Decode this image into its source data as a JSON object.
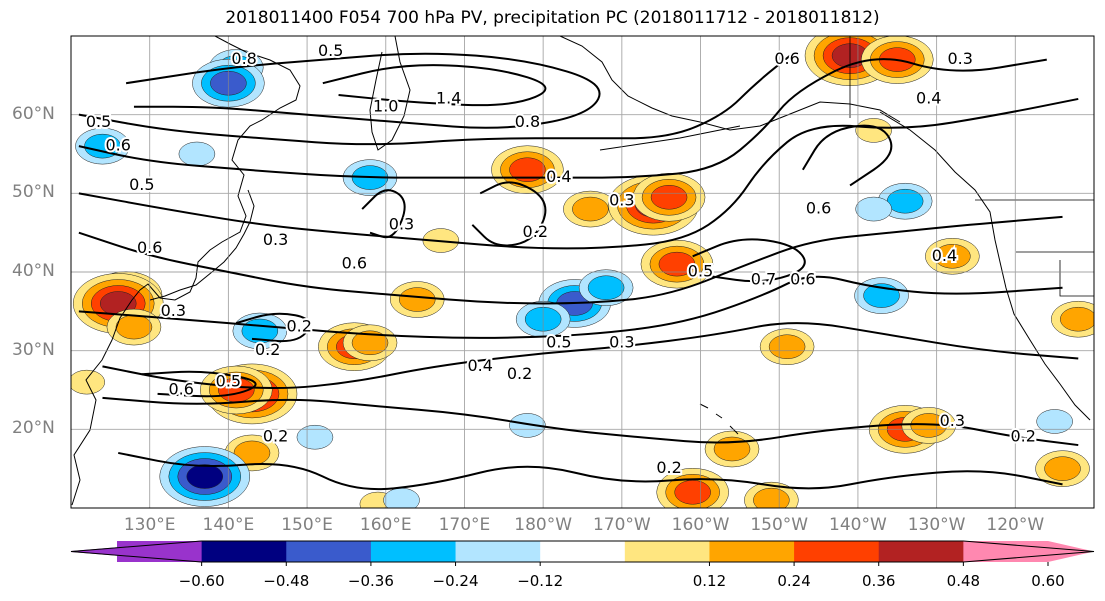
{
  "title": "2018011400 F054 700 hPa PV, precipitation PC (2018011712 - 2018011812)",
  "axes": {
    "lat_labels": [
      "60°N",
      "50°N",
      "40°N",
      "30°N",
      "20°N"
    ],
    "lon_labels": [
      "130°E",
      "140°E",
      "150°E",
      "160°E",
      "170°E",
      "180°W",
      "170°W",
      "160°W",
      "150°W",
      "140°W",
      "130°W",
      "120°W"
    ],
    "lat_values": [
      60,
      50,
      40,
      30,
      20
    ],
    "lon_values": [
      130,
      140,
      150,
      160,
      170,
      180,
      190,
      200,
      210,
      220,
      230,
      240
    ],
    "lon_range": [
      120,
      250
    ],
    "lat_range": [
      10,
      70
    ],
    "grid": true
  },
  "contour_labels": [
    {
      "text": "0.5",
      "lon": 123.5,
      "lat": 59
    },
    {
      "text": "0.8",
      "lon": 142,
      "lat": 67
    },
    {
      "text": "0.5",
      "lon": 153,
      "lat": 68
    },
    {
      "text": "1.4",
      "lon": 168,
      "lat": 62
    },
    {
      "text": "1.0",
      "lon": 160,
      "lat": 61
    },
    {
      "text": "0.8",
      "lon": 178,
      "lat": 59
    },
    {
      "text": "0.6",
      "lon": 211,
      "lat": 67
    },
    {
      "text": "0.3",
      "lon": 233,
      "lat": 67
    },
    {
      "text": "0.4",
      "lon": 229,
      "lat": 62
    },
    {
      "text": "0.6",
      "lon": 126,
      "lat": 56
    },
    {
      "text": "0.5",
      "lon": 129,
      "lat": 51
    },
    {
      "text": "0.6",
      "lon": 130,
      "lat": 43
    },
    {
      "text": "0.3",
      "lon": 146,
      "lat": 44
    },
    {
      "text": "0.4",
      "lon": 182,
      "lat": 52
    },
    {
      "text": "0.3",
      "lon": 190,
      "lat": 49
    },
    {
      "text": "0.6",
      "lon": 156,
      "lat": 41
    },
    {
      "text": "0.3",
      "lon": 162,
      "lat": 46
    },
    {
      "text": "0.2",
      "lon": 179,
      "lat": 45
    },
    {
      "text": "0.6",
      "lon": 215,
      "lat": 48
    },
    {
      "text": "0.4",
      "lon": 231,
      "lat": 42
    },
    {
      "text": "0.5",
      "lon": 200,
      "lat": 40
    },
    {
      "text": "0.7",
      "lon": 208,
      "lat": 39
    },
    {
      "text": "0.6",
      "lon": 213,
      "lat": 39
    },
    {
      "text": "0.3",
      "lon": 133,
      "lat": 35
    },
    {
      "text": "0.2",
      "lon": 149,
      "lat": 33
    },
    {
      "text": "0.2",
      "lon": 145,
      "lat": 30
    },
    {
      "text": "0.6",
      "lon": 134,
      "lat": 25
    },
    {
      "text": "0.5",
      "lon": 140,
      "lat": 26
    },
    {
      "text": "0.4",
      "lon": 172,
      "lat": 28
    },
    {
      "text": "0.2",
      "lon": 177,
      "lat": 27
    },
    {
      "text": "0.5",
      "lon": 182,
      "lat": 31
    },
    {
      "text": "0.3",
      "lon": 190,
      "lat": 31
    },
    {
      "text": "0.2",
      "lon": 146,
      "lat": 19
    },
    {
      "text": "0.2",
      "lon": 196,
      "lat": 15
    },
    {
      "text": "0.3",
      "lon": 232,
      "lat": 21
    },
    {
      "text": "0.2",
      "lon": 241,
      "lat": 19
    }
  ],
  "pv_contours": [
    [
      [
        127,
        64
      ],
      [
        140,
        66
      ],
      [
        152,
        67
      ],
      [
        165,
        68
      ],
      [
        178,
        67
      ],
      [
        188,
        64
      ],
      [
        186,
        60
      ],
      [
        175,
        58
      ],
      [
        162,
        59
      ],
      [
        150,
        60
      ],
      [
        138,
        61
      ],
      [
        128,
        61
      ]
    ],
    [
      [
        152,
        64
      ],
      [
        162,
        66.5
      ],
      [
        174,
        66
      ],
      [
        182,
        63.5
      ],
      [
        176,
        61
      ],
      [
        164,
        61.5
      ],
      [
        154,
        62.5
      ]
    ],
    [
      [
        121,
        60
      ],
      [
        132,
        58
      ],
      [
        144,
        57
      ],
      [
        158,
        56
      ],
      [
        172,
        57
      ],
      [
        186,
        57
      ],
      [
        196,
        57
      ],
      [
        203,
        60
      ],
      [
        207,
        64
      ],
      [
        212,
        68
      ]
    ],
    [
      [
        121,
        56
      ],
      [
        130,
        54
      ],
      [
        142,
        53
      ],
      [
        156,
        52
      ],
      [
        170,
        52
      ],
      [
        180,
        52
      ],
      [
        192,
        52
      ],
      [
        202,
        53
      ],
      [
        208,
        58
      ],
      [
        212,
        63
      ],
      [
        222,
        68
      ],
      [
        232,
        65
      ],
      [
        244,
        67
      ]
    ],
    [
      [
        121,
        50
      ],
      [
        132,
        48
      ],
      [
        144,
        46
      ],
      [
        154,
        45
      ],
      [
        166,
        44
      ],
      [
        178,
        43
      ],
      [
        188,
        43
      ],
      [
        198,
        44
      ],
      [
        204,
        48
      ],
      [
        208,
        54
      ],
      [
        214,
        59
      ],
      [
        226,
        58
      ],
      [
        238,
        60
      ],
      [
        248,
        62
      ]
    ],
    [
      [
        121,
        45
      ],
      [
        130,
        42
      ],
      [
        140,
        40
      ],
      [
        150,
        38
      ],
      [
        162,
        37
      ],
      [
        174,
        36
      ],
      [
        186,
        36
      ],
      [
        196,
        37
      ],
      [
        206,
        41
      ],
      [
        214,
        44
      ],
      [
        224,
        45
      ],
      [
        234,
        46
      ],
      [
        246,
        47
      ]
    ],
    [
      [
        121,
        35
      ],
      [
        134,
        34
      ],
      [
        146,
        33
      ],
      [
        158,
        32
      ],
      [
        172,
        31.5
      ],
      [
        186,
        32
      ],
      [
        198,
        33.5
      ],
      [
        208,
        37
      ],
      [
        214,
        40
      ],
      [
        222,
        38
      ],
      [
        232,
        37
      ],
      [
        246,
        38
      ]
    ],
    [
      [
        124,
        28
      ],
      [
        134,
        26
      ],
      [
        146,
        25
      ],
      [
        156,
        26
      ],
      [
        166,
        28
      ],
      [
        178,
        29.5
      ],
      [
        190,
        30.5
      ],
      [
        202,
        32
      ],
      [
        212,
        34
      ],
      [
        224,
        32
      ],
      [
        236,
        30
      ],
      [
        248,
        29
      ]
    ],
    [
      [
        124,
        24
      ],
      [
        136,
        23
      ],
      [
        148,
        24
      ],
      [
        158,
        23
      ],
      [
        170,
        22
      ],
      [
        182,
        20
      ],
      [
        192,
        19
      ],
      [
        204,
        18
      ],
      [
        216,
        20
      ],
      [
        230,
        21
      ],
      [
        240,
        19
      ],
      [
        248,
        18
      ]
    ],
    [
      [
        126,
        17
      ],
      [
        136,
        15
      ],
      [
        148,
        16
      ],
      [
        156,
        12
      ],
      [
        166,
        13
      ],
      [
        178,
        16
      ],
      [
        190,
        13
      ],
      [
        202,
        14
      ],
      [
        214,
        12
      ],
      [
        224,
        14
      ],
      [
        236,
        15
      ],
      [
        246,
        13
      ]
    ],
    [
      [
        157,
        48
      ],
      [
        160,
        51
      ],
      [
        163,
        49
      ],
      [
        161,
        44
      ],
      [
        158,
        45
      ]
    ],
    [
      [
        172,
        50
      ],
      [
        176,
        52
      ],
      [
        181,
        49
      ],
      [
        179,
        44
      ],
      [
        174,
        43
      ],
      [
        171,
        46
      ]
    ],
    [
      [
        199,
        42
      ],
      [
        205,
        44.5
      ],
      [
        212,
        43.5
      ],
      [
        214,
        40.5
      ],
      [
        208,
        38.5
      ],
      [
        201,
        39.5
      ]
    ],
    [
      [
        141,
        33.5
      ],
      [
        146,
        35
      ],
      [
        151,
        34
      ],
      [
        149,
        31
      ],
      [
        143,
        31.5
      ]
    ],
    [
      [
        129,
        27
      ],
      [
        137,
        27.5
      ],
      [
        145,
        26
      ],
      [
        140,
        24
      ],
      [
        131,
        24.5
      ]
    ],
    [
      [
        213,
        53
      ],
      [
        216,
        58
      ],
      [
        223,
        59
      ],
      [
        225,
        55
      ],
      [
        219,
        51
      ]
    ]
  ],
  "precip_positive": [
    {
      "lon": 127,
      "lat": 37,
      "v": 0.38
    },
    {
      "lon": 126,
      "lat": 36,
      "v": 0.5
    },
    {
      "lon": 128,
      "lat": 33,
      "v": 0.25
    },
    {
      "lon": 143,
      "lat": 24.5,
      "v": 0.5
    },
    {
      "lon": 141,
      "lat": 25,
      "v": 0.38
    },
    {
      "lon": 156,
      "lat": 30.5,
      "v": 0.38
    },
    {
      "lon": 158,
      "lat": 31,
      "v": 0.25
    },
    {
      "lon": 164,
      "lat": 36.5,
      "v": 0.3
    },
    {
      "lon": 167,
      "lat": 44,
      "v": 0.15
    },
    {
      "lon": 178,
      "lat": 53,
      "v": 0.38
    },
    {
      "lon": 186,
      "lat": 48,
      "v": 0.25
    },
    {
      "lon": 194,
      "lat": 48.5,
      "v": 0.5
    },
    {
      "lon": 196,
      "lat": 49.5,
      "v": 0.38
    },
    {
      "lon": 197,
      "lat": 41,
      "v": 0.38
    },
    {
      "lon": 211,
      "lat": 30.5,
      "v": 0.25
    },
    {
      "lon": 219,
      "lat": 67.5,
      "v": 0.5
    },
    {
      "lon": 225,
      "lat": 67,
      "v": 0.38
    },
    {
      "lon": 232,
      "lat": 42,
      "v": 0.3
    },
    {
      "lon": 226,
      "lat": 20,
      "v": 0.38
    },
    {
      "lon": 229,
      "lat": 20.5,
      "v": 0.25
    },
    {
      "lon": 204,
      "lat": 17.5,
      "v": 0.3
    },
    {
      "lon": 199,
      "lat": 12,
      "v": 0.38
    },
    {
      "lon": 209,
      "lat": 11,
      "v": 0.25
    },
    {
      "lon": 143,
      "lat": 17,
      "v": 0.25
    },
    {
      "lon": 159,
      "lat": 10.5,
      "v": 0.2
    },
    {
      "lon": 246,
      "lat": 15,
      "v": 0.3
    },
    {
      "lon": 248,
      "lat": 34,
      "v": 0.3
    },
    {
      "lon": 222,
      "lat": 58,
      "v": 0.2
    },
    {
      "lon": 122,
      "lat": 26,
      "v": 0.2
    }
  ],
  "precip_negative": [
    {
      "lon": 141,
      "lat": 66,
      "v": -0.3
    },
    {
      "lon": 140,
      "lat": 64,
      "v": -0.45
    },
    {
      "lon": 124,
      "lat": 56,
      "v": -0.25
    },
    {
      "lon": 136,
      "lat": 55,
      "v": -0.2
    },
    {
      "lon": 158,
      "lat": 52,
      "v": -0.25
    },
    {
      "lon": 144,
      "lat": 32.5,
      "v": -0.28
    },
    {
      "lon": 184,
      "lat": 36,
      "v": -0.45
    },
    {
      "lon": 180,
      "lat": 34,
      "v": -0.3
    },
    {
      "lon": 188,
      "lat": 38,
      "v": -0.3
    },
    {
      "lon": 226,
      "lat": 49,
      "v": -0.3
    },
    {
      "lon": 222,
      "lat": 48,
      "v": -0.2
    },
    {
      "lon": 223,
      "lat": 37,
      "v": -0.3
    },
    {
      "lon": 137,
      "lat": 14,
      "v": -0.5
    },
    {
      "lon": 178,
      "lat": 20.5,
      "v": -0.2
    },
    {
      "lon": 162,
      "lat": 11,
      "v": -0.2
    },
    {
      "lon": 151,
      "lat": 19,
      "v": -0.2
    },
    {
      "lon": 245,
      "lat": 21,
      "v": -0.2
    }
  ],
  "colorbar": {
    "tick_labels": [
      "−0.60",
      "−0.48",
      "−0.36",
      "−0.24",
      "−0.12",
      "0.12",
      "0.24",
      "0.36",
      "0.48",
      "0.60"
    ],
    "colors": [
      "#9933CC",
      "#000080",
      "#3A5BCC",
      "#00BFFF",
      "#B2E5FF",
      "#FFFFFF",
      "#FFE680",
      "#FFA500",
      "#FF4000",
      "#B22222",
      "#FF88B0"
    ]
  }
}
